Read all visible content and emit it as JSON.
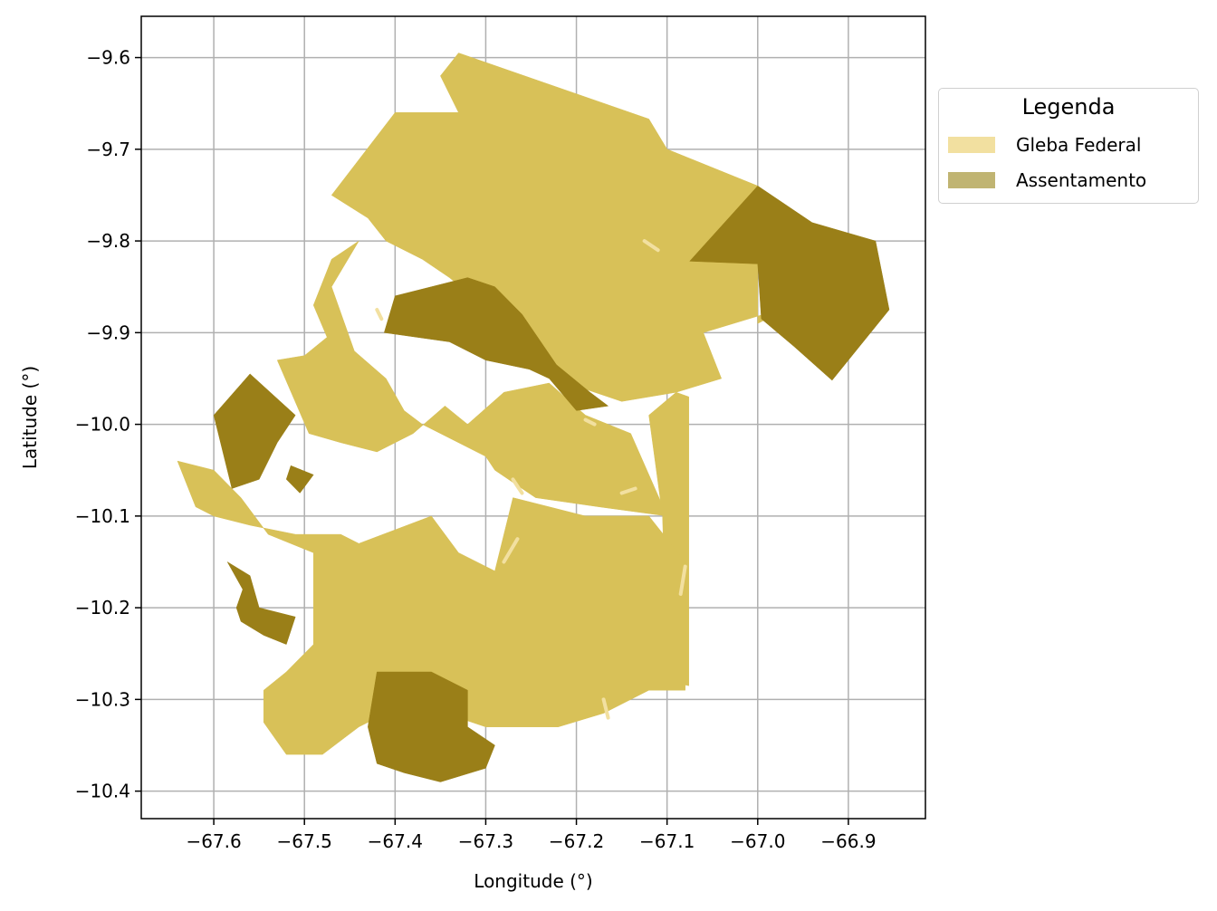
{
  "chart_data": {
    "type": "map",
    "xlabel": "Longitude (°)",
    "ylabel": "Latitude (°)",
    "xlim": [
      -67.68,
      -66.815
    ],
    "ylim": [
      -10.43,
      -9.555
    ],
    "x_ticks": [
      -67.6,
      -67.5,
      -67.4,
      -67.3,
      -67.2,
      -67.1,
      -67.0,
      -66.9
    ],
    "x_tick_labels": [
      "−67.6",
      "−67.5",
      "−67.4",
      "−67.3",
      "−67.2",
      "−67.1",
      "−67.0",
      "−66.9"
    ],
    "y_ticks": [
      -9.6,
      -9.7,
      -9.8,
      -9.9,
      -10.0,
      -10.1,
      -10.2,
      -10.3,
      -10.4
    ],
    "y_tick_labels": [
      "−9.6",
      "−9.7",
      "−9.8",
      "−9.9",
      "−10.0",
      "−10.1",
      "−10.2",
      "−10.3",
      "−10.4"
    ],
    "grid": true,
    "legend": {
      "title": "Legenda",
      "placement": "outside-right-top",
      "entries": [
        {
          "label": "Gleba Federal",
          "color": "#f2e0a0"
        },
        {
          "label": "Assentamento",
          "color": "#c0b472"
        }
      ]
    },
    "colors": {
      "gleba_fill": "#d8c158",
      "assentamento_fill": "#9a7f18",
      "gleba_light": "#f2e0a0"
    },
    "regions": [
      {
        "layer": "gleba",
        "name": "gleba-north",
        "coords": [
          [
            -67.33,
            -9.595
          ],
          [
            -67.12,
            -9.667
          ],
          [
            -67.1,
            -9.7
          ],
          [
            -67.0,
            -9.74
          ],
          [
            -67.0,
            -9.89
          ],
          [
            -66.96,
            -9.87
          ],
          [
            -67.06,
            -9.9
          ],
          [
            -67.04,
            -9.95
          ],
          [
            -67.09,
            -9.965
          ],
          [
            -67.15,
            -9.975
          ],
          [
            -67.21,
            -9.955
          ],
          [
            -67.26,
            -9.905
          ],
          [
            -67.34,
            -9.84
          ],
          [
            -67.37,
            -9.82
          ],
          [
            -67.41,
            -9.8
          ],
          [
            -67.43,
            -9.775
          ],
          [
            -67.47,
            -9.75
          ],
          [
            -67.4,
            -9.66
          ],
          [
            -67.33,
            -9.66
          ],
          [
            -67.35,
            -9.62
          ]
        ]
      },
      {
        "layer": "gleba",
        "name": "gleba-east-strip",
        "coords": [
          [
            -67.09,
            -9.965
          ],
          [
            -67.076,
            -9.97
          ],
          [
            -67.076,
            -10.285
          ],
          [
            -67.1,
            -10.28
          ],
          [
            -67.105,
            -10.1
          ],
          [
            -67.12,
            -9.99
          ]
        ]
      },
      {
        "layer": "gleba",
        "name": "gleba-west-central",
        "coords": [
          [
            -67.44,
            -9.8
          ],
          [
            -67.47,
            -9.82
          ],
          [
            -67.49,
            -9.87
          ],
          [
            -67.475,
            -9.905
          ],
          [
            -67.5,
            -9.925
          ],
          [
            -67.53,
            -9.93
          ],
          [
            -67.495,
            -10.01
          ],
          [
            -67.46,
            -10.02
          ],
          [
            -67.42,
            -10.03
          ],
          [
            -67.38,
            -10.01
          ],
          [
            -67.345,
            -9.98
          ],
          [
            -67.32,
            -10.0
          ],
          [
            -67.28,
            -9.965
          ],
          [
            -67.23,
            -9.955
          ],
          [
            -67.19,
            -9.99
          ],
          [
            -67.14,
            -10.01
          ],
          [
            -67.1,
            -10.1
          ],
          [
            -67.175,
            -10.09
          ],
          [
            -67.245,
            -10.08
          ],
          [
            -67.29,
            -10.05
          ],
          [
            -67.3,
            -10.035
          ],
          [
            -67.37,
            -10.0
          ],
          [
            -67.39,
            -9.985
          ],
          [
            -67.41,
            -9.95
          ],
          [
            -67.445,
            -9.92
          ],
          [
            -67.47,
            -9.85
          ]
        ]
      },
      {
        "layer": "gleba",
        "name": "gleba-south",
        "coords": [
          [
            -67.64,
            -10.04
          ],
          [
            -67.62,
            -10.09
          ],
          [
            -67.6,
            -10.1
          ],
          [
            -67.56,
            -10.11
          ],
          [
            -67.51,
            -10.12
          ],
          [
            -67.46,
            -10.12
          ],
          [
            -67.44,
            -10.13
          ],
          [
            -67.36,
            -10.1
          ],
          [
            -67.33,
            -10.14
          ],
          [
            -67.29,
            -10.16
          ],
          [
            -67.27,
            -10.08
          ],
          [
            -67.23,
            -10.09
          ],
          [
            -67.19,
            -10.1
          ],
          [
            -67.12,
            -10.1
          ],
          [
            -67.08,
            -10.15
          ],
          [
            -67.08,
            -10.29
          ],
          [
            -67.12,
            -10.29
          ],
          [
            -67.17,
            -10.315
          ],
          [
            -67.22,
            -10.33
          ],
          [
            -67.3,
            -10.33
          ],
          [
            -67.36,
            -10.31
          ],
          [
            -67.42,
            -10.32
          ],
          [
            -67.44,
            -10.33
          ],
          [
            -67.48,
            -10.36
          ],
          [
            -67.52,
            -10.36
          ],
          [
            -67.545,
            -10.325
          ],
          [
            -67.545,
            -10.29
          ],
          [
            -67.52,
            -10.27
          ],
          [
            -67.49,
            -10.24
          ],
          [
            -67.49,
            -10.14
          ],
          [
            -67.54,
            -10.12
          ],
          [
            -67.57,
            -10.08
          ],
          [
            -67.6,
            -10.05
          ]
        ]
      },
      {
        "layer": "assentamento",
        "name": "assentamento-north-central",
        "coords": [
          [
            -67.412,
            -9.9
          ],
          [
            -67.34,
            -9.91
          ],
          [
            -67.3,
            -9.93
          ],
          [
            -67.252,
            -9.94
          ],
          [
            -67.23,
            -9.95
          ],
          [
            -67.2,
            -9.985
          ],
          [
            -67.165,
            -9.98
          ],
          [
            -67.185,
            -9.965
          ],
          [
            -67.222,
            -9.935
          ],
          [
            -67.26,
            -9.88
          ],
          [
            -67.29,
            -9.85
          ],
          [
            -67.32,
            -9.84
          ],
          [
            -67.4,
            -9.86
          ]
        ]
      },
      {
        "layer": "assentamento",
        "name": "assentamento-northeast",
        "coords": [
          [
            -67.0,
            -9.74
          ],
          [
            -66.94,
            -9.78
          ],
          [
            -66.87,
            -9.8
          ],
          [
            -66.855,
            -9.875
          ],
          [
            -66.918,
            -9.952
          ],
          [
            -66.96,
            -9.915
          ],
          [
            -66.996,
            -9.885
          ],
          [
            -67.0,
            -9.825
          ],
          [
            -67.075,
            -9.822
          ]
        ]
      },
      {
        "layer": "assentamento",
        "name": "assentamento-west",
        "coords": [
          [
            -67.6,
            -9.99
          ],
          [
            -67.56,
            -9.945
          ],
          [
            -67.51,
            -9.99
          ],
          [
            -67.53,
            -10.02
          ],
          [
            -67.55,
            -10.06
          ],
          [
            -67.58,
            -10.07
          ]
        ]
      },
      {
        "layer": "assentamento",
        "name": "assentamento-west-small",
        "coords": [
          [
            -67.515,
            -10.045
          ],
          [
            -67.49,
            -10.055
          ],
          [
            -67.505,
            -10.075
          ],
          [
            -67.52,
            -10.06
          ]
        ]
      },
      {
        "layer": "assentamento",
        "name": "assentamento-southwest",
        "coords": [
          [
            -67.585,
            -10.15
          ],
          [
            -67.568,
            -10.18
          ],
          [
            -67.575,
            -10.2
          ],
          [
            -67.57,
            -10.215
          ],
          [
            -67.545,
            -10.23
          ],
          [
            -67.52,
            -10.24
          ],
          [
            -67.51,
            -10.21
          ],
          [
            -67.55,
            -10.2
          ],
          [
            -67.56,
            -10.165
          ]
        ]
      },
      {
        "layer": "assentamento",
        "name": "assentamento-south",
        "coords": [
          [
            -67.42,
            -10.27
          ],
          [
            -67.36,
            -10.27
          ],
          [
            -67.32,
            -10.29
          ],
          [
            -67.32,
            -10.33
          ],
          [
            -67.29,
            -10.35
          ],
          [
            -67.3,
            -10.375
          ],
          [
            -67.35,
            -10.39
          ],
          [
            -67.39,
            -10.38
          ],
          [
            -67.42,
            -10.37
          ],
          [
            -67.43,
            -10.33
          ]
        ]
      }
    ],
    "light_marks": [
      {
        "name": "light-mark-1",
        "coords": [
          [
            -67.125,
            -9.8
          ],
          [
            -67.11,
            -9.81
          ]
        ]
      },
      {
        "name": "light-mark-2",
        "coords": [
          [
            -67.19,
            -9.995
          ],
          [
            -67.18,
            -10.0
          ]
        ]
      },
      {
        "name": "light-mark-3",
        "coords": [
          [
            -67.27,
            -10.06
          ],
          [
            -67.26,
            -10.075
          ]
        ]
      },
      {
        "name": "light-mark-4",
        "coords": [
          [
            -67.28,
            -10.15
          ],
          [
            -67.265,
            -10.125
          ]
        ]
      },
      {
        "name": "light-mark-5",
        "coords": [
          [
            -67.15,
            -10.075
          ],
          [
            -67.135,
            -10.07
          ]
        ]
      },
      {
        "name": "light-mark-6",
        "coords": [
          [
            -67.08,
            -10.155
          ],
          [
            -67.085,
            -10.185
          ]
        ]
      },
      {
        "name": "light-mark-7",
        "coords": [
          [
            -67.17,
            -10.3
          ],
          [
            -67.165,
            -10.32
          ]
        ]
      },
      {
        "name": "light-mark-8",
        "coords": [
          [
            -67.42,
            -9.875
          ],
          [
            -67.415,
            -9.885
          ]
        ]
      }
    ]
  }
}
